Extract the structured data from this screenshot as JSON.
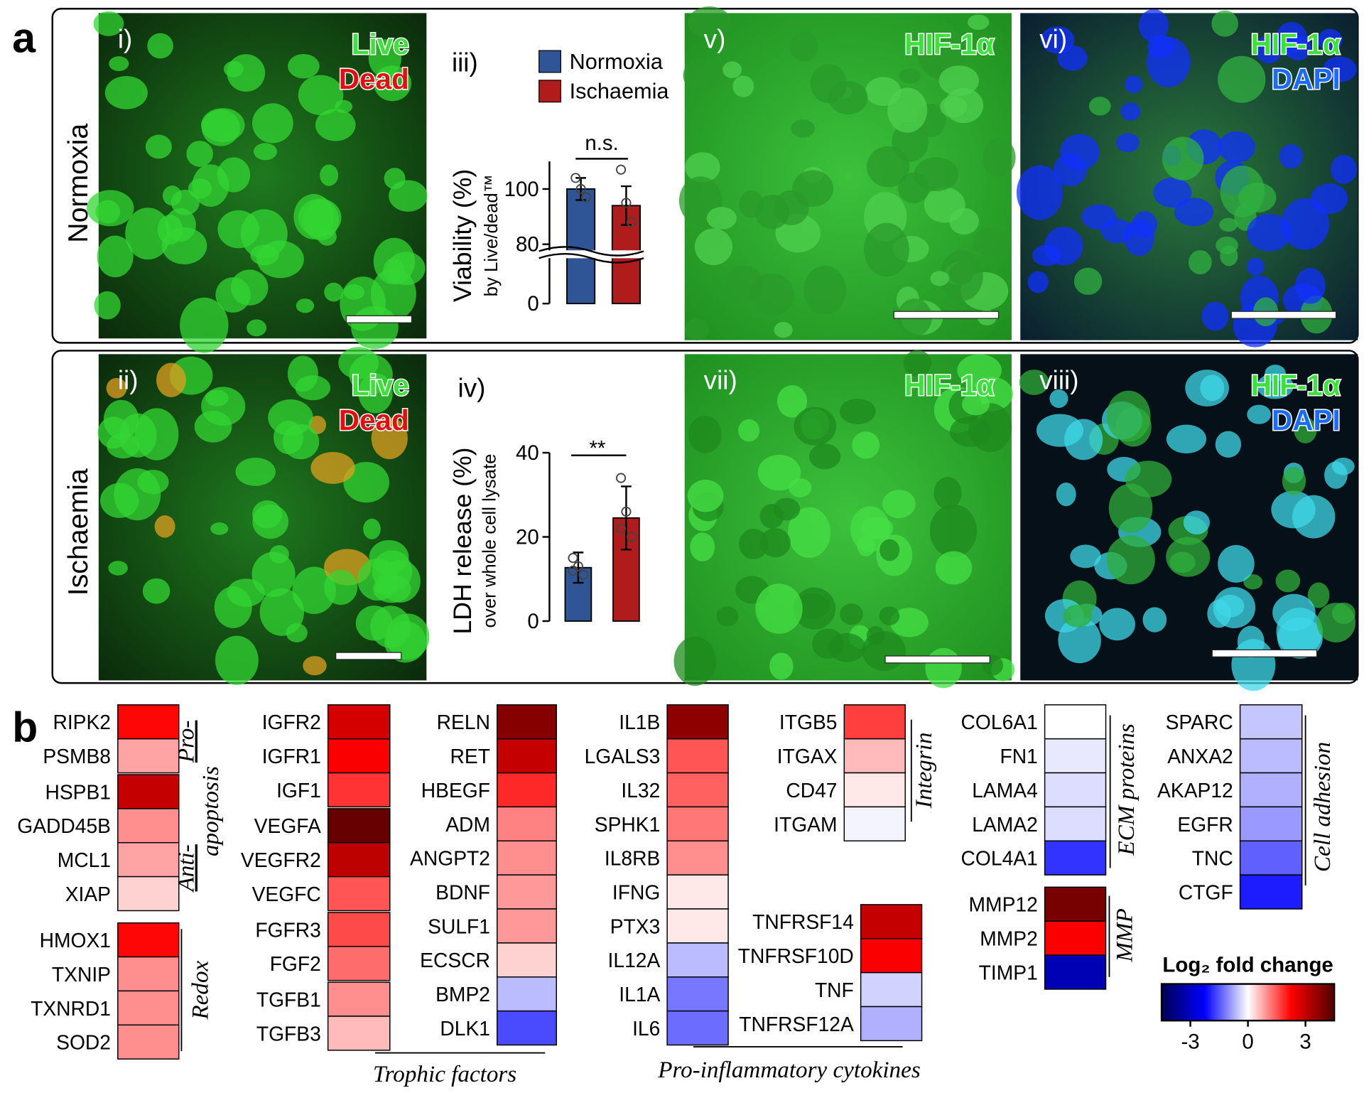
{
  "figure": {
    "panel_a": {
      "label": "a",
      "conditions": [
        "Normoxia",
        "Ischaemia"
      ],
      "images": [
        {
          "label": "i)",
          "stains": [
            "Live",
            "Dead"
          ]
        },
        {
          "label": "v)",
          "stains": [
            "HIF-1α"
          ]
        },
        {
          "label": "vi)",
          "stains": [
            "HIF-1α",
            "DAPI"
          ]
        },
        {
          "label": "ii)",
          "stains": [
            "Live",
            "Dead"
          ]
        },
        {
          "label": "vii)",
          "stains": [
            "HIF-1α"
          ]
        },
        {
          "label": "viii)",
          "stains": [
            "HIF-1α",
            "DAPI"
          ]
        }
      ]
    },
    "panel_b": {
      "label": "b",
      "colorbar": {
        "title": "Log₂ fold change",
        "clim": [
          -4.5,
          4.5
        ],
        "ticks": [
          -3,
          0,
          3
        ],
        "colors": [
          "#000050",
          "#0000ff",
          "#ffffff",
          "#ff0000",
          "#500000"
        ]
      }
    }
  },
  "chart_data": [
    {
      "type": "bar",
      "panel": "iii)",
      "ylabel": "Viability (%)",
      "ylabel_sub": "by Live/dead™",
      "ylim": [
        0,
        110
      ],
      "ybreak": 80,
      "yticks": [
        0,
        80,
        100
      ],
      "legend": true,
      "annotation": "n.s.",
      "series": [
        {
          "name": "Normoxia",
          "color": "#2f5597",
          "values": [
            100
          ],
          "errors": [
            4
          ],
          "points": [
            104,
            100,
            97
          ]
        },
        {
          "name": "Ischaemia",
          "color": "#b01c1c",
          "values": [
            94
          ],
          "errors": [
            7
          ],
          "points": [
            107,
            95,
            88
          ]
        }
      ]
    },
    {
      "type": "bar",
      "panel": "iv)",
      "ylabel": "LDH release (%)",
      "ylabel_sub": "over whole cell lysate",
      "ylim": [
        0,
        40
      ],
      "yticks": [
        0,
        20,
        40
      ],
      "legend": false,
      "annotation": "**",
      "series": [
        {
          "color": "#2f5597",
          "values": [
            12.7
          ],
          "errors": [
            3.6
          ],
          "points": [
            15,
            13,
            11,
            12
          ]
        },
        {
          "color": "#b01c1c",
          "values": [
            24.5
          ],
          "errors": [
            7.5
          ],
          "points": [
            34,
            26,
            20,
            22
          ]
        }
      ]
    },
    {
      "type": "heatmap",
      "labels": [
        "Pro-",
        "apoptosis",
        "Anti-"
      ],
      "categories": [
        "RIPK2",
        "PSMB8",
        "HSPB1",
        "GADD45B",
        "MCL1",
        "XIAP"
      ],
      "values": [
        2.2,
        0.8,
        3,
        1,
        0.8,
        0.4
      ]
    },
    {
      "type": "heatmap",
      "labels": [
        "Redox"
      ],
      "categories": [
        "HMOX1",
        "TXNIP",
        "TXNRD1",
        "SOD2"
      ],
      "values": [
        2.2,
        1,
        1,
        1
      ]
    },
    {
      "type": "heatmap",
      "labels": [
        "Trophic  factors"
      ],
      "categories": [
        "IGFR2",
        "IGFR1",
        "IGF1",
        "VEGFA",
        "VEGFR2",
        "VEGFC",
        "FGFR3",
        "FGF2",
        "TGFB1",
        "TGFB3",
        "RELN",
        "RET",
        "HBEGF",
        "ADM",
        "ANGPT2",
        "BDNF",
        "SULF1",
        "ECSCR",
        "BMP2",
        "DLK1"
      ],
      "values": [
        2.8,
        2.3,
        1.8,
        4.2,
        3.1,
        1.5,
        1.6,
        1.3,
        1,
        0.6,
        3.8,
        3,
        1.9,
        1.1,
        1,
        0.9,
        0.9,
        0.4,
        -0.6,
        -1.6
      ]
    },
    {
      "type": "heatmap",
      "labels": [
        "Pro-inflammatory cytokines"
      ],
      "categories": [
        "IL1B",
        "LGALS3",
        "IL32",
        "SPHK1",
        "IL8RB",
        "IFNG",
        "PTX3",
        "IL12A",
        "IL1A",
        "IL6",
        "TNFRSF14",
        "TNFRSF10D",
        "TNF",
        "TNFRSF12A"
      ],
      "values": [
        3.7,
        1.5,
        1.4,
        1.2,
        1,
        0.2,
        0.2,
        -0.6,
        -1.2,
        -1.3,
        3,
        2.3,
        -0.4,
        -0.7
      ]
    },
    {
      "type": "heatmap",
      "labels": [
        "Integrin"
      ],
      "categories": [
        "ITGB5",
        "ITGAX",
        "CD47",
        "ITGAM"
      ],
      "values": [
        1.7,
        0.6,
        0.2,
        -0.1
      ]
    },
    {
      "type": "heatmap",
      "labels": [
        "ECM proteins"
      ],
      "categories": [
        "COL6A1",
        "FN1",
        "LAMA4",
        "LAMA2",
        "COL4A1"
      ],
      "values": [
        0,
        -0.2,
        -0.3,
        -0.3,
        -1.8
      ]
    },
    {
      "type": "heatmap",
      "labels": [
        "MMP"
      ],
      "categories": [
        "MMP12",
        "MMP2",
        "TIMP1"
      ],
      "values": [
        4,
        2.3,
        -3.2
      ]
    },
    {
      "type": "heatmap",
      "labels": [
        "Cell adhesion"
      ],
      "categories": [
        "SPARC",
        "ANXA2",
        "AKAP12",
        "EGFR",
        "TNC",
        "CTGF"
      ],
      "values": [
        -0.5,
        -0.6,
        -0.7,
        -0.9,
        -1.4,
        -2
      ]
    }
  ]
}
